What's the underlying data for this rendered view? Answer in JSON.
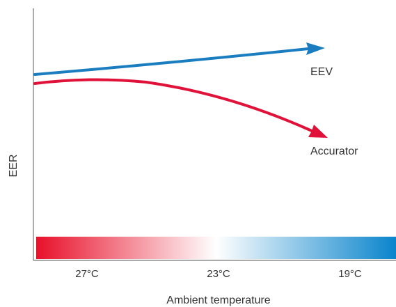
{
  "y_axis_label": "EER",
  "x_axis_label": "Ambient temperature",
  "series": [
    {
      "name": "EEV",
      "color": "#1a7dc0",
      "trend": "rising"
    },
    {
      "name": "Accurator",
      "color": "#e0123a",
      "trend": "falling"
    }
  ],
  "temperature_scale": {
    "ticks": [
      "27°C",
      "23°C",
      "19°C"
    ],
    "gradient_colors": [
      "#e8102a",
      "#ffffff",
      "#0a84cc"
    ]
  }
}
